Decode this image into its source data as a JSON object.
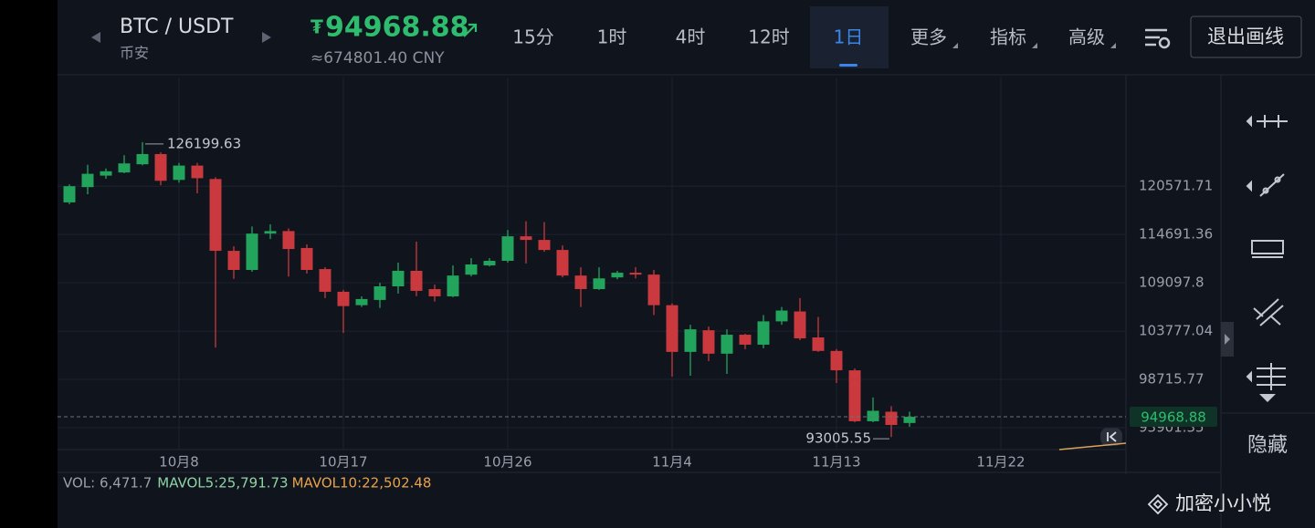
{
  "header": {
    "symbol": "BTC / USDT",
    "exchange": "币安",
    "currency_sign": "₮",
    "price": "94968.88",
    "price_cny": "≈674801.40 CNY"
  },
  "toolbar": {
    "intervals": [
      "15分",
      "1时",
      "4时",
      "12时",
      "1日"
    ],
    "menus": [
      "更多",
      "指标",
      "高级"
    ],
    "exit_drawing": "退出画线"
  },
  "sidebar": {
    "hide": "隐藏"
  },
  "watermark": "加密小小悦",
  "chart_data": {
    "type": "candlestick",
    "categories": [
      null,
      null,
      null,
      null,
      null,
      null,
      "10月8",
      null,
      null,
      null,
      null,
      null,
      null,
      null,
      null,
      "10月17",
      null,
      null,
      null,
      null,
      null,
      null,
      null,
      null,
      "10月26",
      null,
      null,
      null,
      null,
      null,
      null,
      null,
      null,
      "11月4",
      null,
      null,
      null,
      null,
      null,
      null,
      null,
      null,
      "11月13",
      null,
      null,
      null,
      null,
      null,
      null,
      null,
      null,
      "11月22"
    ],
    "open": [
      118570,
      120460,
      121900,
      122300,
      123340,
      124650,
      121360,
      123170,
      121470,
      112770,
      110560,
      114800,
      115100,
      113100,
      110660,
      108090,
      106600,
      107180,
      108700,
      110460,
      108390,
      107580,
      110020,
      111080,
      111610,
      114480,
      114050,
      112870,
      109920,
      108390,
      109710,
      110240,
      110030,
      106600,
      101570,
      103870,
      101380,
      103390,
      102330,
      104830,
      105910,
      103100,
      101670,
      99650,
      94530,
      95470,
      94360,
      null,
      null,
      null,
      null,
      null
    ],
    "high": [
      120800,
      123280,
      122800,
      124500,
      126199.63,
      124880,
      123510,
      123510,
      121700,
      113300,
      115650,
      115900,
      115420,
      113520,
      110870,
      108300,
      107580,
      109100,
      111400,
      113850,
      108900,
      111080,
      111920,
      111920,
      115220,
      116280,
      116170,
      113400,
      110870,
      110870,
      110460,
      110870,
      110560,
      106800,
      104460,
      104270,
      103970,
      103490,
      105520,
      106400,
      107380,
      105310,
      101860,
      99840,
      96890,
      96020,
      95470,
      null,
      null,
      null,
      null,
      null
    ],
    "low": [
      118350,
      119570,
      121500,
      122200,
      123200,
      120690,
      121020,
      119680,
      102030,
      109540,
      110350,
      114160,
      109800,
      110150,
      107380,
      103590,
      106400,
      106300,
      107890,
      107600,
      107000,
      107480,
      109820,
      110970,
      111400,
      111300,
      112660,
      109710,
      106400,
      108300,
      109500,
      109600,
      105520,
      99000,
      99090,
      100610,
      99280,
      101850,
      101950,
      104460,
      102810,
      101570,
      98350,
      94440,
      94440,
      93005.55,
      93990,
      null,
      null,
      null,
      null,
      null
    ],
    "close": [
      120570,
      122130,
      122450,
      123450,
      124650,
      121250,
      123170,
      121580,
      112770,
      110560,
      114800,
      115100,
      112980,
      110560,
      108090,
      106500,
      107280,
      108700,
      110460,
      108190,
      107580,
      109920,
      111190,
      111610,
      114480,
      114050,
      112870,
      109920,
      108390,
      109600,
      110240,
      110030,
      106600,
      101570,
      103970,
      101380,
      103390,
      102330,
      104830,
      106010,
      103000,
      101670,
      99650,
      94530,
      95560,
      94170,
      94968.88,
      null,
      null,
      null,
      null,
      null
    ],
    "up_color": "#22a45d",
    "down_color": "#c9393e",
    "log_scale": true,
    "grid": true,
    "ylim": [
      91800,
      134930
    ],
    "yticks": [
      120571.71,
      114691.36,
      109097.8,
      103777.04,
      98715.77,
      93901.35
    ],
    "last_price": 94968.88,
    "high_label": 126199.63,
    "low_label": 93005.55,
    "volume_legend": {
      "vol": "VOL: 6,471.7",
      "mavol5": "MAVOL5:25,791.73",
      "mavol10": "MAVOL10:22,502.48"
    }
  }
}
